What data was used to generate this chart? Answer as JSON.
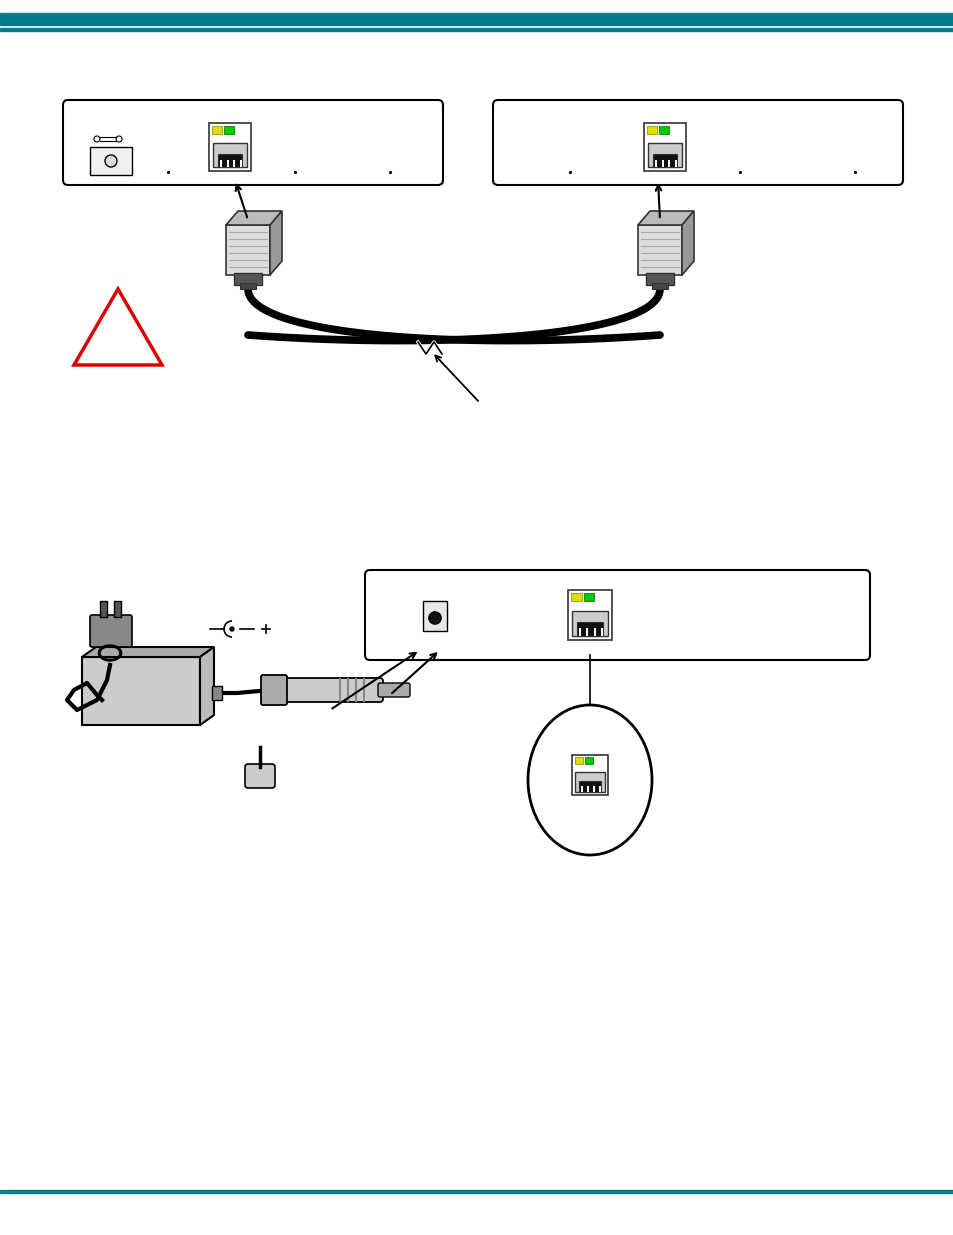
{
  "bg_color": "#ffffff",
  "teal_color": "#007d8a",
  "figure_width": 9.54,
  "figure_height": 12.35
}
